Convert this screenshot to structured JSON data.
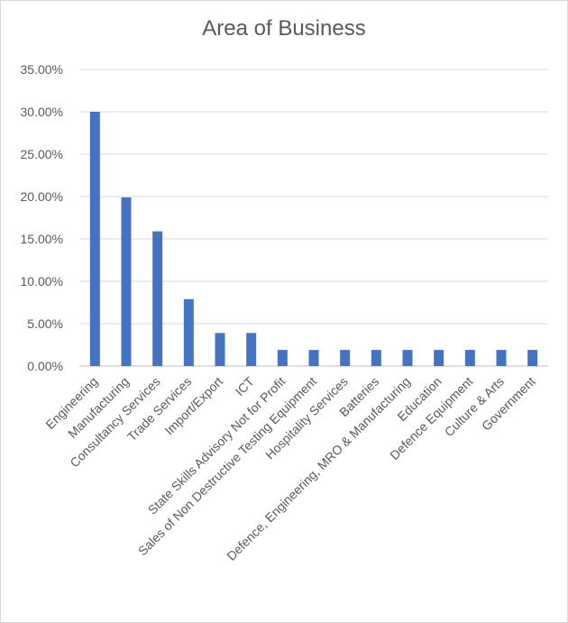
{
  "chart_data": {
    "type": "bar",
    "title": "Area of Business",
    "xlabel": "",
    "ylabel": "",
    "ylim": [
      0,
      35
    ],
    "yticks": [
      "0.00%",
      "5.00%",
      "10.00%",
      "15.00%",
      "20.00%",
      "25.00%",
      "30.00%",
      "35.00%"
    ],
    "grid": true,
    "legend": "none",
    "bar_color": "#4472C4",
    "categories": [
      "Engineering",
      "Manufacturing",
      "Consultancy Services",
      "Trade Services",
      "Import/Export",
      "ICT",
      "State Skills Advisory Not for Profit",
      "Sales of Non Destructive Testing Equipment",
      "Hospitality Services",
      "Batteries",
      "Defence, Engineering, MRO & Manufacturing",
      "Education",
      "Defence Equipment",
      "Culture & Arts",
      "Government"
    ],
    "values": [
      30,
      19.9,
      15.9,
      7.9,
      3.9,
      3.9,
      1.9,
      1.9,
      1.9,
      1.9,
      1.9,
      1.9,
      1.9,
      1.9,
      1.9
    ]
  }
}
